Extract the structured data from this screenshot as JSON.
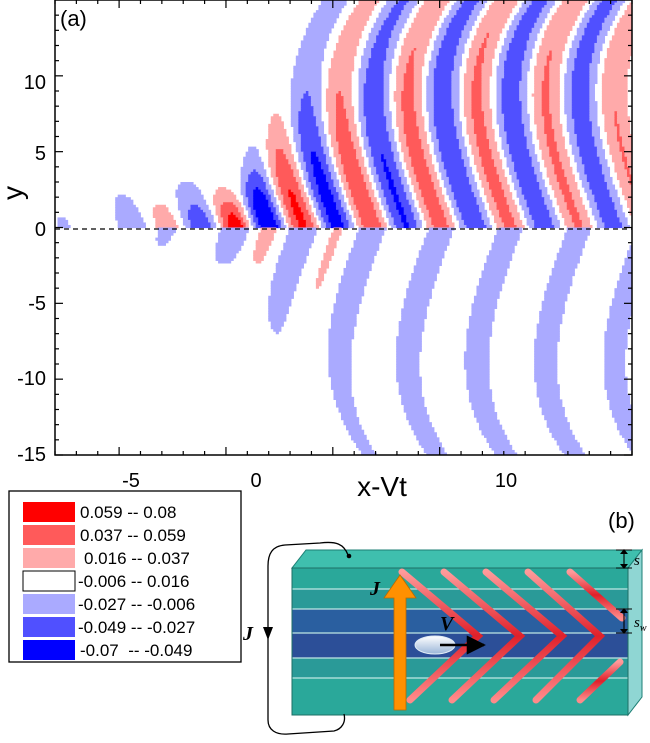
{
  "panel_a": {
    "label": "(a)",
    "xlabel": "x-Vt",
    "ylabel": "y",
    "xticks": [
      "-5",
      "0",
      "5",
      "10"
    ],
    "yticks": [
      "10",
      "5",
      "0",
      "-5",
      "-10",
      "-15"
    ]
  },
  "panel_b": {
    "label": "(b)",
    "current_label": "J",
    "loop_label": "J",
    "velocity_label": "V",
    "spacing_label": "s",
    "width_label": "s",
    "width_subscript": "w"
  },
  "colors": {
    "red_strong": "#ff0000",
    "red_mid": "#ff5a5a",
    "red_light": "#ffaaaa",
    "white": "#ffffff",
    "blue_light": "#aaaaff",
    "blue_mid": "#5050ff",
    "blue_strong": "#0000ff",
    "slab_green": "#2aa89a",
    "slab_blue": "#2a5fa0",
    "arrow_orange": "#ff9000"
  },
  "chart_data": {
    "type": "heatmap",
    "title": "",
    "xlabel": "x-Vt",
    "ylabel": "y",
    "xlim": [
      -8,
      19
    ],
    "ylim": [
      -15,
      15
    ],
    "x_ticks": [
      -5,
      0,
      5,
      10
    ],
    "y_ticks": [
      -15,
      -10,
      -5,
      0,
      5,
      10
    ],
    "zero_line": "dashed at y=0",
    "legend": {
      "placement": "bottom-left",
      "entries": [
        {
          "label": "0.059 -- 0.08",
          "min": 0.059,
          "max": 0.08,
          "color": "#ff0000"
        },
        {
          "label": "0.037 -- 0.059",
          "min": 0.037,
          "max": 0.059,
          "color": "#ff5a5a"
        },
        {
          "label": "0.016 -- 0.037",
          "min": 0.016,
          "max": 0.037,
          "color": "#ffaaaa"
        },
        {
          "label": "-0.006 -- 0.016",
          "min": -0.006,
          "max": 0.016,
          "color": "#ffffff"
        },
        {
          "label": "-0.027 -- -0.006",
          "min": -0.027,
          "max": -0.006,
          "color": "#aaaaff"
        },
        {
          "label": "-0.049 -- -0.027",
          "min": -0.049,
          "max": -0.027,
          "color": "#5050ff"
        },
        {
          "label": "-0.07  -- -0.049",
          "min": -0.07,
          "max": -0.049,
          "color": "#0000ff"
        }
      ]
    }
  }
}
